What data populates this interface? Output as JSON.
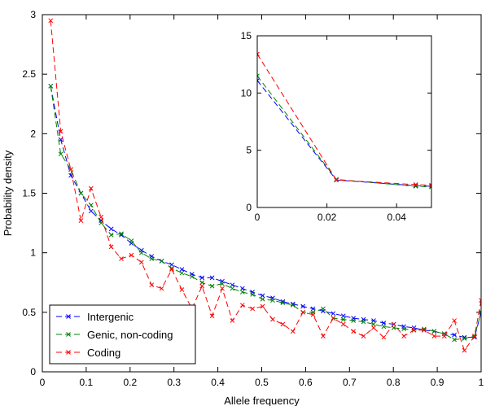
{
  "chart_data": [
    {
      "type": "line",
      "xlabel": "Allele frequency",
      "ylabel": "Probability density",
      "xlim": [
        0,
        1
      ],
      "ylim": [
        0,
        3
      ],
      "xticks": [
        0,
        0.1,
        0.2,
        0.3,
        0.4,
        0.5,
        0.6,
        0.7,
        0.8,
        0.9,
        1
      ],
      "xtick_labels": [
        "0",
        "0.1",
        "0.2",
        "0.3",
        "0.4",
        "0.5",
        "0.6",
        "0.7",
        "0.8",
        "0.9",
        "1"
      ],
      "yticks": [
        0,
        0.5,
        1,
        1.5,
        2,
        2.5,
        3
      ],
      "ytick_labels": [
        "0",
        "0.5",
        "1",
        "1.5",
        "2",
        "2.5",
        "3"
      ],
      "legend_position": "bottom-left",
      "series": [
        {
          "name": "Intergenic",
          "color": "#0000ff",
          "x": [
            0.019,
            0.042,
            0.065,
            0.088,
            0.111,
            0.134,
            0.157,
            0.18,
            0.203,
            0.226,
            0.249,
            0.272,
            0.295,
            0.318,
            0.341,
            0.364,
            0.387,
            0.41,
            0.433,
            0.456,
            0.479,
            0.502,
            0.525,
            0.548,
            0.571,
            0.594,
            0.617,
            0.64,
            0.663,
            0.686,
            0.709,
            0.732,
            0.755,
            0.778,
            0.801,
            0.824,
            0.847,
            0.87,
            0.893,
            0.916,
            0.939,
            0.962,
            0.985,
            1.0
          ],
          "y": [
            2.4,
            1.95,
            1.65,
            1.5,
            1.35,
            1.27,
            1.2,
            1.15,
            1.08,
            1.02,
            0.97,
            0.93,
            0.9,
            0.86,
            0.82,
            0.79,
            0.79,
            0.76,
            0.73,
            0.7,
            0.67,
            0.64,
            0.62,
            0.59,
            0.57,
            0.55,
            0.53,
            0.51,
            0.49,
            0.47,
            0.45,
            0.44,
            0.43,
            0.41,
            0.4,
            0.38,
            0.37,
            0.35,
            0.34,
            0.32,
            0.31,
            0.29,
            0.29,
            0.5
          ]
        },
        {
          "name": "Genic, non-coding",
          "color": "#008000",
          "x": [
            0.019,
            0.042,
            0.065,
            0.088,
            0.111,
            0.134,
            0.157,
            0.18,
            0.203,
            0.226,
            0.249,
            0.272,
            0.295,
            0.318,
            0.341,
            0.364,
            0.387,
            0.41,
            0.433,
            0.456,
            0.479,
            0.502,
            0.525,
            0.548,
            0.571,
            0.594,
            0.617,
            0.64,
            0.663,
            0.686,
            0.709,
            0.732,
            0.755,
            0.778,
            0.801,
            0.824,
            0.847,
            0.87,
            0.893,
            0.916,
            0.939,
            0.962,
            0.985,
            1.0
          ],
          "y": [
            2.4,
            1.83,
            1.7,
            1.5,
            1.4,
            1.25,
            1.15,
            1.16,
            1.1,
            1.0,
            0.95,
            0.93,
            0.87,
            0.83,
            0.8,
            0.75,
            0.72,
            0.74,
            0.7,
            0.67,
            0.65,
            0.61,
            0.6,
            0.58,
            0.56,
            0.5,
            0.5,
            0.53,
            0.45,
            0.44,
            0.43,
            0.42,
            0.4,
            0.38,
            0.37,
            0.36,
            0.35,
            0.36,
            0.34,
            0.32,
            0.27,
            0.28,
            0.3,
            0.5
          ]
        },
        {
          "name": "Coding",
          "color": "#ff0000",
          "x": [
            0.019,
            0.042,
            0.065,
            0.088,
            0.111,
            0.134,
            0.157,
            0.18,
            0.203,
            0.226,
            0.249,
            0.272,
            0.295,
            0.318,
            0.341,
            0.364,
            0.387,
            0.41,
            0.433,
            0.456,
            0.479,
            0.502,
            0.525,
            0.548,
            0.571,
            0.594,
            0.617,
            0.64,
            0.663,
            0.686,
            0.709,
            0.732,
            0.755,
            0.778,
            0.801,
            0.824,
            0.847,
            0.87,
            0.893,
            0.916,
            0.939,
            0.962,
            0.985,
            1.0
          ],
          "y": [
            2.95,
            2.02,
            1.7,
            1.27,
            1.54,
            1.3,
            1.05,
            0.95,
            0.98,
            0.92,
            0.73,
            0.7,
            0.86,
            0.69,
            0.53,
            0.72,
            0.47,
            0.7,
            0.43,
            0.56,
            0.53,
            0.55,
            0.44,
            0.4,
            0.34,
            0.5,
            0.48,
            0.3,
            0.45,
            0.4,
            0.34,
            0.3,
            0.37,
            0.29,
            0.4,
            0.3,
            0.35,
            0.35,
            0.3,
            0.3,
            0.43,
            0.18,
            0.3,
            0.6
          ]
        }
      ]
    },
    {
      "type": "line",
      "xlabel": "",
      "ylabel": "",
      "xlim": [
        0,
        0.05
      ],
      "ylim": [
        0,
        15
      ],
      "xticks": [
        0,
        0.02,
        0.04
      ],
      "xtick_labels": [
        "0",
        "0.02",
        "0.04"
      ],
      "yticks": [
        0,
        5,
        10,
        15
      ],
      "ytick_labels": [
        "0",
        "5",
        "10",
        "15"
      ],
      "series": [
        {
          "name": "Intergenic",
          "color": "#0000ff",
          "x": [
            0.0,
            0.0227,
            0.0455,
            0.05
          ],
          "y": [
            11.1,
            2.4,
            1.9,
            1.85
          ]
        },
        {
          "name": "Genic, non-coding",
          "color": "#008000",
          "x": [
            0.0,
            0.0227,
            0.0455,
            0.05
          ],
          "y": [
            11.5,
            2.45,
            1.85,
            1.8
          ]
        },
        {
          "name": "Coding",
          "color": "#ff0000",
          "x": [
            0.0,
            0.0227,
            0.0455,
            0.05
          ],
          "y": [
            13.4,
            2.4,
            2.0,
            1.95
          ]
        }
      ]
    }
  ]
}
